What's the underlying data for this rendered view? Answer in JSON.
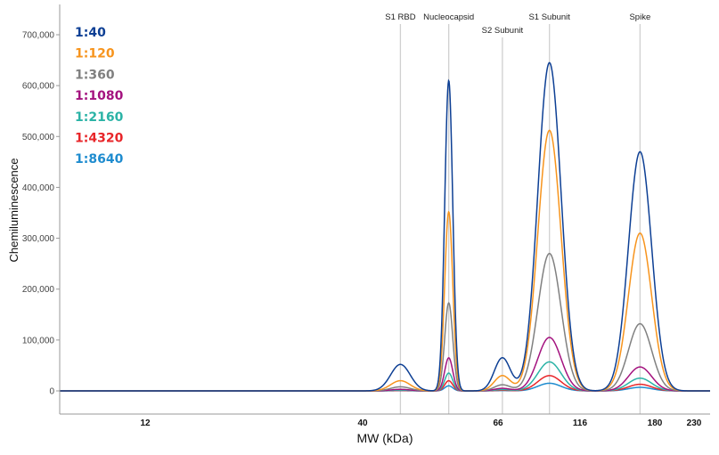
{
  "chart_data": {
    "type": "line",
    "xlabel": "MW (kDa)",
    "ylabel": "Chemiluminescence",
    "x_scale": "nonlinear (MW)",
    "x_ticks": [
      12,
      40,
      66,
      116,
      180,
      230
    ],
    "x_tick_labels": [
      "12",
      "40",
      "66",
      "116",
      "180",
      "230"
    ],
    "y_ticks": [
      0,
      100000,
      200000,
      300000,
      400000,
      500000,
      600000,
      700000
    ],
    "y_tick_labels": [
      "0",
      "100,000",
      "200,000",
      "300,000",
      "400,000",
      "500,000",
      "600,000",
      "700,000"
    ],
    "ylim": [
      -45000,
      760000
    ],
    "grid": "vertical reference lines at peak positions",
    "legend_position": "top-left",
    "peaks": [
      {
        "label": "S1 RBD",
        "mw": 46
      },
      {
        "label": "Nucleocapsid",
        "mw": 55
      },
      {
        "label": "S2 Subunit",
        "mw": 68
      },
      {
        "label": "S1 Subunit",
        "mw": 94
      },
      {
        "label": "Spike",
        "mw": 165
      }
    ],
    "series": [
      {
        "name": "1:40",
        "color": "#0d3f94",
        "peak_values": [
          52000,
          610000,
          65000,
          645000,
          470000
        ]
      },
      {
        "name": "1:120",
        "color": "#f7941d",
        "peak_values": [
          20000,
          352000,
          30000,
          512000,
          310000
        ]
      },
      {
        "name": "1:360",
        "color": "#808080",
        "peak_values": [
          8000,
          173000,
          12000,
          270000,
          132000
        ]
      },
      {
        "name": "1:1080",
        "color": "#a4137f",
        "peak_values": [
          3000,
          65000,
          5000,
          105000,
          47000
        ]
      },
      {
        "name": "1:2160",
        "color": "#2bb3a6",
        "peak_values": [
          1500,
          35000,
          2500,
          57000,
          25000
        ]
      },
      {
        "name": "1:4320",
        "color": "#e8262a",
        "peak_values": [
          800,
          20000,
          1200,
          30000,
          13000
        ]
      },
      {
        "name": "1:8640",
        "color": "#1f8ccf",
        "peak_values": [
          400,
          10000,
          600,
          15000,
          7000
        ]
      }
    ]
  }
}
